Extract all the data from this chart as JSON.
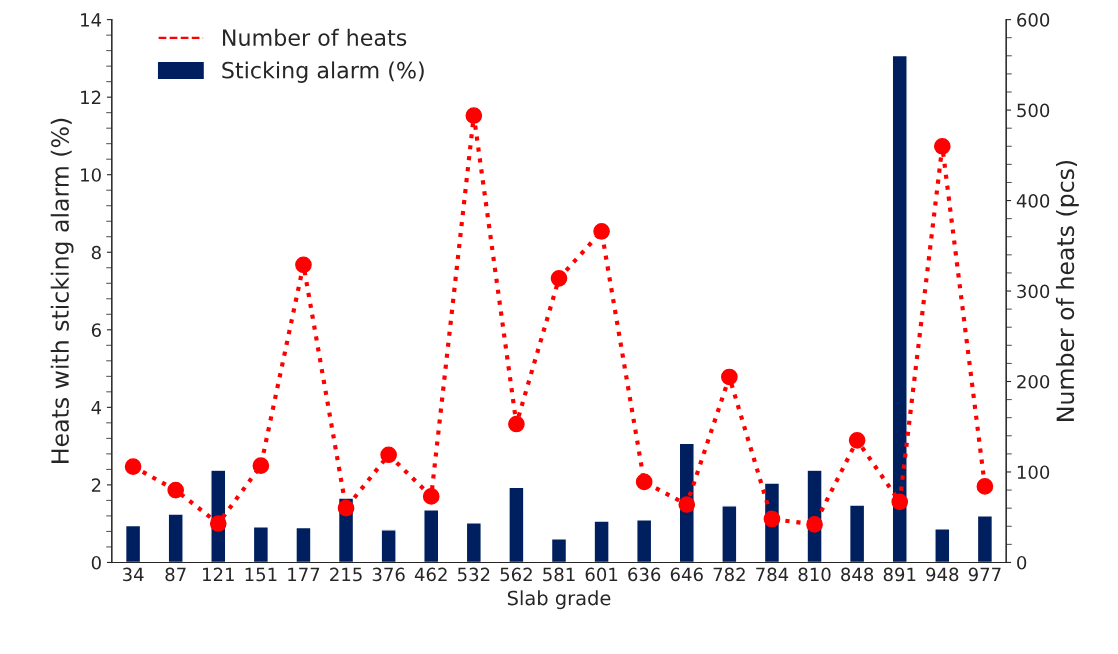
{
  "chart_data": {
    "type": "bar",
    "xlabel": "Slab grade",
    "ylabel": "Heats with sticking alarm (%)",
    "y2label": "Number of heats (pcs)",
    "categories": [
      "34",
      "87",
      "121",
      "151",
      "177",
      "215",
      "376",
      "462",
      "532",
      "562",
      "581",
      "601",
      "636",
      "646",
      "782",
      "784",
      "810",
      "848",
      "891",
      "948",
      "977"
    ],
    "series": [
      {
        "name": "Sticking alarm (%)",
        "color": "#001f5f",
        "values": [
          0.95,
          1.25,
          2.38,
          0.92,
          0.9,
          1.66,
          0.84,
          1.36,
          1.02,
          1.94,
          0.61,
          1.07,
          1.1,
          3.07,
          1.46,
          2.05,
          2.38,
          1.48,
          13.07,
          0.87,
          1.2
        ]
      },
      {
        "name": "Number of heats",
        "type": "line",
        "axis": "y2",
        "color": "#ff0000",
        "marker": "circle",
        "line_style": "dotted",
        "values": [
          106,
          80,
          43,
          107,
          329,
          60,
          119,
          73,
          494,
          153,
          314,
          366,
          89,
          64,
          205,
          48,
          42,
          135,
          67,
          460,
          84
        ]
      }
    ],
    "ylim": [
      0,
      14
    ],
    "yticks": [
      0,
      2,
      4,
      6,
      8,
      10,
      12,
      14
    ],
    "y2lim": [
      0,
      600
    ],
    "y2ticks": [
      0,
      100,
      200,
      300,
      400,
      500,
      600
    ],
    "legend": "top left",
    "grid": false
  }
}
